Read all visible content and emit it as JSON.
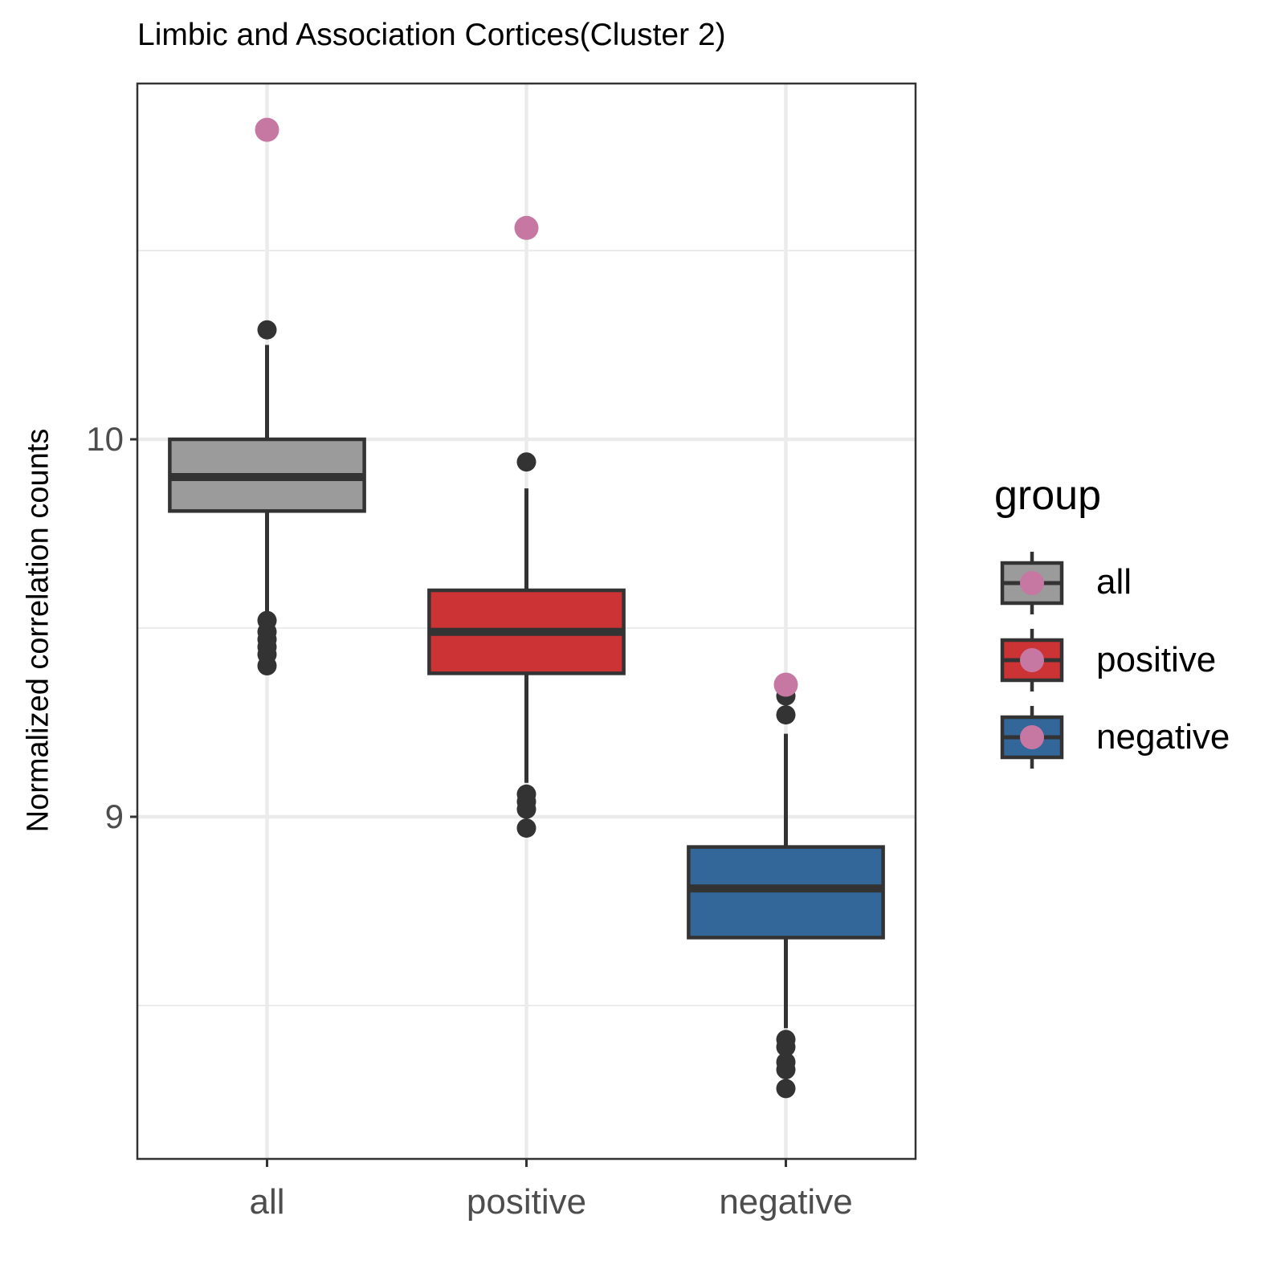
{
  "chart_data": {
    "type": "box",
    "title": "Limbic and Association Cortices(Cluster 2)",
    "xlabel": "",
    "ylabel": "Normalized correlation counts",
    "categories": [
      "all",
      "positive",
      "negative"
    ],
    "ylim": [
      7.63,
      10.48
    ],
    "yticks": [
      9,
      10
    ],
    "grid": true,
    "legend": {
      "title": "group",
      "position": "right",
      "entries": [
        "all",
        "positive",
        "negative"
      ]
    },
    "series": [
      {
        "name": "all",
        "color": "#9b9b9b",
        "box": {
          "whisker_low": 9.53,
          "q1": 9.81,
          "median": 9.9,
          "q3": 10.0,
          "whisker_high": 10.25
        },
        "outliers": [
          9.52,
          9.49,
          9.47,
          9.45,
          9.43,
          9.4,
          10.29
        ],
        "highlight": 10.82
      },
      {
        "name": "positive",
        "color": "#cb3335",
        "box": {
          "whisker_low": 9.09,
          "q1": 9.38,
          "median": 9.49,
          "q3": 9.6,
          "whisker_high": 9.87
        },
        "outliers": [
          9.06,
          9.04,
          9.02,
          8.97,
          9.94
        ],
        "highlight": 10.56
      },
      {
        "name": "negative",
        "color": "#336699",
        "box": {
          "whisker_low": 8.44,
          "q1": 8.68,
          "median": 8.81,
          "q3": 8.92,
          "whisker_high": 9.22
        },
        "outliers": [
          8.41,
          8.39,
          8.35,
          8.33,
          8.28,
          9.27,
          9.32
        ],
        "highlight": 9.35
      }
    ],
    "highlight_color": "#c678a2",
    "outlier_color": "#333333",
    "box_line_color": "#333333",
    "grid_color": "#ebebeb",
    "panel_border_color": "#333333"
  }
}
